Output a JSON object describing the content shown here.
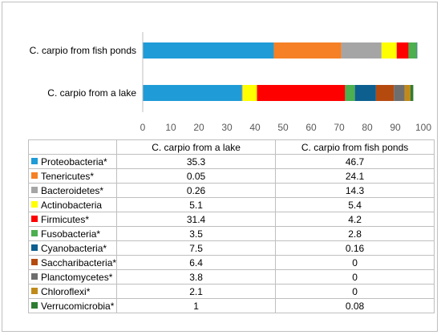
{
  "chart_data": {
    "type": "bar",
    "orientation": "horizontal",
    "stacked": true,
    "categories": [
      "C. carpio from a lake",
      "C. carpio from fish ponds"
    ],
    "series": [
      {
        "name": "Proteobacteria*",
        "color": "#1f9bd7",
        "values": [
          "35.3",
          "46.7"
        ]
      },
      {
        "name": "Tenericutes*",
        "color": "#f58025",
        "values": [
          "0.05",
          "24.1"
        ]
      },
      {
        "name": "Bacteroidetes*",
        "color": "#a5a5a5",
        "values": [
          "0.26",
          "14.3"
        ]
      },
      {
        "name": "Actinobacteria",
        "color": "#ffff00",
        "values": [
          "5.1",
          "5.4"
        ]
      },
      {
        "name": "Firmicutes*",
        "color": "#ff0000",
        "values": [
          "31.4",
          "4.2"
        ]
      },
      {
        "name": "Fusobacteria*",
        "color": "#4caf50",
        "values": [
          "3.5",
          "2.8"
        ]
      },
      {
        "name": "Cyanobacteria*",
        "color": "#0d5f8f",
        "values": [
          "7.5",
          "0.16"
        ]
      },
      {
        "name": "Saccharibacteria*",
        "color": "#b54a0f",
        "values": [
          "6.4",
          "0"
        ]
      },
      {
        "name": "Planctomycetes*",
        "color": "#6e6e6e",
        "values": [
          "3.8",
          "0"
        ]
      },
      {
        "name": "Chloroflexi*",
        "color": "#c08a1a",
        "values": [
          "2.1",
          "0"
        ]
      },
      {
        "name": "Verrucomicrobia*",
        "color": "#2e7d32",
        "values": [
          "1",
          "0.08"
        ]
      }
    ],
    "xlim": [
      0,
      100
    ],
    "xticks": [
      "0",
      "10",
      "20",
      "30",
      "40",
      "50",
      "60",
      "70",
      "80",
      "90",
      "100"
    ],
    "grid": false,
    "legend": "data table below chart"
  }
}
